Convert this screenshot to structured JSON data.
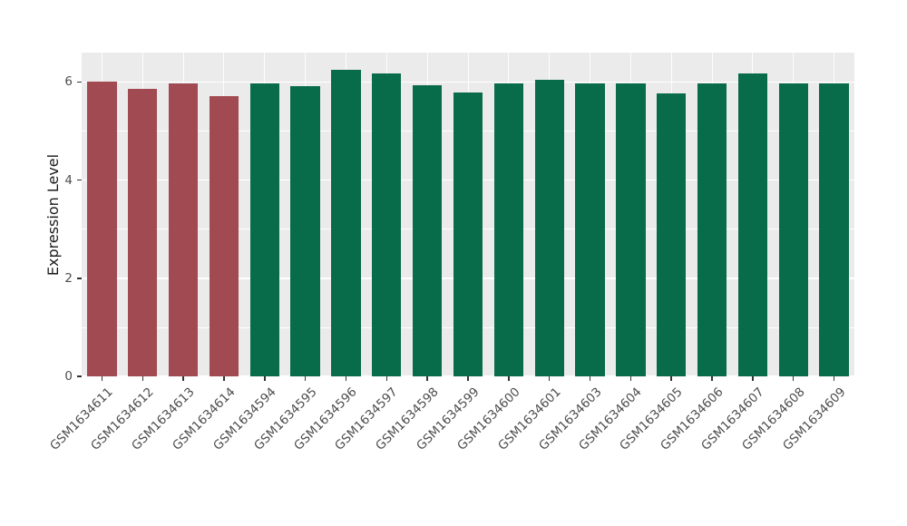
{
  "chart_data": {
    "type": "bar",
    "title": "",
    "xlabel": "",
    "ylabel": "Expression Level",
    "categories": [
      "GSM1634611",
      "GSM1634612",
      "GSM1634613",
      "GSM1634614",
      "GSM1634594",
      "GSM1634595",
      "GSM1634596",
      "GSM1634597",
      "GSM1634598",
      "GSM1634599",
      "GSM1634600",
      "GSM1634601",
      "GSM1634603",
      "GSM1634604",
      "GSM1634605",
      "GSM1634606",
      "GSM1634607",
      "GSM1634608",
      "GSM1634609"
    ],
    "values": [
      6.0,
      5.87,
      5.98,
      5.72,
      5.98,
      5.92,
      6.25,
      6.18,
      5.94,
      5.79,
      5.98,
      6.05,
      5.98,
      5.98,
      5.77,
      5.98,
      6.18,
      5.98,
      5.98
    ],
    "bar_colors": [
      "#A24A52",
      "#A24A52",
      "#A24A52",
      "#A24A52",
      "#086B4A",
      "#086B4A",
      "#086B4A",
      "#086B4A",
      "#086B4A",
      "#086B4A",
      "#086B4A",
      "#086B4A",
      "#086B4A",
      "#086B4A",
      "#086B4A",
      "#086B4A",
      "#086B4A",
      "#086B4A",
      "#086B4A"
    ],
    "group_colors": {
      "first_group": "#A24A52",
      "second_group": "#086B4A"
    },
    "ylim": [
      0,
      6.6
    ],
    "yticks": [
      0,
      2,
      4,
      6
    ],
    "yticks_minor": [
      1,
      3,
      5
    ],
    "grid": "on",
    "legend": "none",
    "panel_background": "#EBEBEB",
    "gridline_color": "#FFFFFF"
  }
}
